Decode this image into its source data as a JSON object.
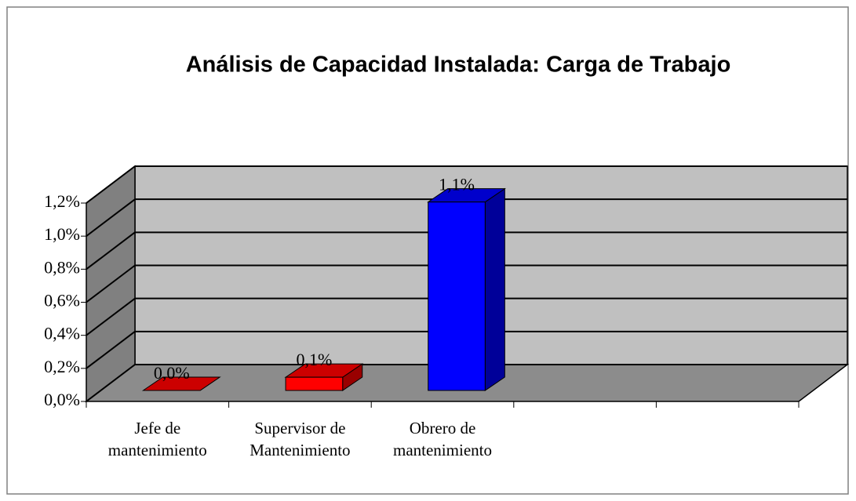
{
  "chart_data": {
    "type": "bar3d",
    "title": "Análisis de Capacidad Instalada: Carga de Trabajo",
    "categories": [
      "Jefe de mantenimiento",
      "Supervisor de Mantenimiento",
      "Obrero de mantenimiento",
      null,
      null
    ],
    "values": [
      0.0,
      0.08,
      1.14,
      null,
      null
    ],
    "value_labels": [
      "0,0%",
      "0,1%",
      "1,1%",
      null,
      null
    ],
    "colors": [
      "#ff0000",
      "#ff0000",
      "#0000ff",
      null,
      null
    ],
    "ylim": [
      0,
      1.2
    ],
    "yticks": [
      {
        "value": 0,
        "label": "0,0%"
      },
      {
        "value": 0.2,
        "label": "0,2%"
      },
      {
        "value": 0.4,
        "label": "0,4%"
      },
      {
        "value": 0.6,
        "label": "0,6%"
      },
      {
        "value": 0.8,
        "label": "0,8%"
      },
      {
        "value": 1.0,
        "label": "1,0%"
      },
      {
        "value": 1.2,
        "label": "1,2%"
      }
    ],
    "grid": true
  }
}
